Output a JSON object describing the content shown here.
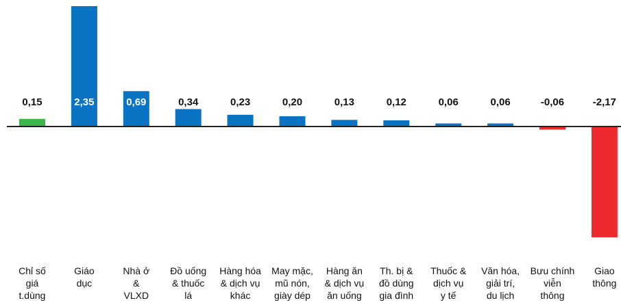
{
  "chart_data": {
    "type": "bar",
    "title": "",
    "xlabel": "",
    "ylabel": "",
    "ylim": [
      -2.17,
      2.35
    ],
    "categories": [
      [
        "Chỉ số",
        "giá",
        "t.dùng"
      ],
      [
        "Giáo",
        "dục"
      ],
      [
        "Nhà ở",
        "&",
        "VLXD"
      ],
      [
        "Đồ uống",
        "& thuốc",
        "lá"
      ],
      [
        "Hàng hóa",
        "& dịch vụ",
        "khác"
      ],
      [
        "May mặc,",
        "mũ nón,",
        "giày dép"
      ],
      [
        "Hàng ăn",
        "& dịch vụ",
        "ăn uống"
      ],
      [
        "Th. bị &",
        "đồ dùng",
        "gia đình"
      ],
      [
        "Thuốc &",
        "dịch vụ",
        "y tế"
      ],
      [
        "Văn hóa,",
        "giải trí,",
        "du lịch"
      ],
      [
        "Bưu chính",
        "viễn",
        "thông"
      ],
      [
        "Giao",
        "thông"
      ]
    ],
    "values": [
      0.15,
      2.35,
      0.69,
      0.34,
      0.23,
      0.2,
      0.13,
      0.12,
      0.06,
      0.06,
      -0.06,
      -2.17
    ],
    "value_labels": [
      "0,15",
      "2,35",
      "0,69",
      "0,34",
      "0,23",
      "0,20",
      "0,13",
      "0,12",
      "0,06",
      "0,06",
      "-0,06",
      "-2,17"
    ],
    "colors": {
      "highlight": "#3cb54a",
      "positive": "#0a73c4",
      "negative": "#ee2a2f",
      "axis": "#222222"
    },
    "highlight_index": 0,
    "grid": false,
    "legend": "none"
  }
}
